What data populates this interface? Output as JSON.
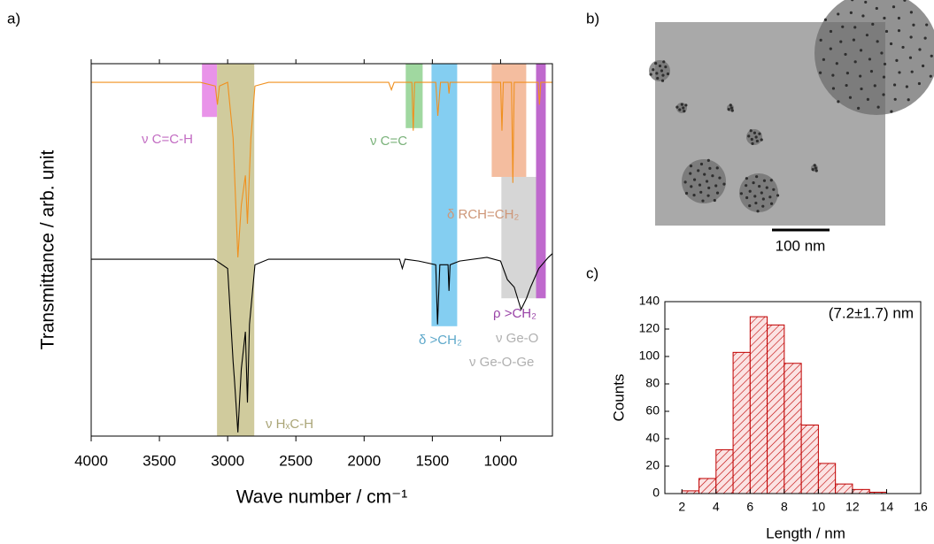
{
  "chart_data": [
    {
      "type": "line",
      "panel": "a)",
      "xlabel": "Wave number / cm⁻¹",
      "ylabel": "Transmittance / arb. unit",
      "xlim": [
        4000,
        620
      ],
      "ylim": [
        0,
        100
      ],
      "xticks": [
        4000,
        3500,
        3000,
        2500,
        2000,
        1500,
        1000
      ],
      "series": [
        {
          "color": "#f0901e",
          "x": [
            4000,
            3200,
            3090,
            3075,
            3060,
            3000,
            2960,
            2925,
            2900,
            2870,
            2855,
            2830,
            2800,
            2700,
            1820,
            1800,
            1780,
            1650,
            1640,
            1630,
            1475,
            1460,
            1440,
            1385,
            1378,
            1370,
            1000,
            990,
            980,
            920,
            910,
            900,
            725,
            715,
            705,
            620
          ],
          "values": [
            95,
            95,
            94,
            89,
            94,
            95,
            80,
            48,
            62,
            70,
            57,
            80,
            94,
            95,
            95,
            93,
            95,
            95,
            82,
            95,
            95,
            86,
            95,
            95,
            92,
            95,
            95,
            82,
            95,
            95,
            68,
            95,
            95,
            89,
            95,
            95
          ]
        },
        {
          "color": "#000000",
          "x": [
            4000,
            3100,
            3000,
            2960,
            2950,
            2925,
            2900,
            2870,
            2855,
            2840,
            2800,
            2700,
            1740,
            1720,
            1700,
            1600,
            1475,
            1462,
            1445,
            1385,
            1378,
            1370,
            1300,
            1100,
            1000,
            950,
            900,
            850,
            810,
            780,
            720,
            650,
            620
          ],
          "values": [
            47.5,
            47.5,
            45,
            20,
            15,
            1,
            18,
            28,
            9,
            30,
            46,
            47.5,
            47.5,
            45,
            47.5,
            47,
            46,
            30,
            46,
            46,
            39,
            46,
            47,
            48,
            47,
            42,
            40,
            34,
            37,
            40,
            45,
            48,
            49
          ]
        }
      ],
      "bands": [
        {
          "color": "#e580e5",
          "x": [
            3188,
            3078
          ],
          "y": [
            100,
            85.7
          ],
          "labels": [
            "ν C=C-H"
          ]
        },
        {
          "color": "#c8c28c",
          "x": [
            3078,
            2805
          ],
          "y": [
            100,
            0
          ],
          "labels": [
            "ν HₓC-H"
          ]
        },
        {
          "color": "#8fd18f",
          "x": [
            1695,
            1571
          ],
          "y": [
            100,
            82.7
          ],
          "labels": [
            "ν C=C"
          ]
        },
        {
          "color": "#6ec6ee",
          "x": [
            1506,
            1318
          ],
          "y": [
            100,
            29.5
          ],
          "labels": [
            "δ >CH₂"
          ]
        },
        {
          "color": "#f2b28e",
          "x": [
            1065,
            812
          ],
          "y": [
            100,
            69.6
          ],
          "labels": [
            "δ RCH=CH₂"
          ]
        },
        {
          "color": "#cfcfcf",
          "x": [
            994,
            740
          ],
          "y": [
            69.6,
            37
          ],
          "labels": [
            "ν Ge-O",
            "ν Ge-O-Ge"
          ]
        },
        {
          "color": "#b44fc4",
          "x": [
            740,
            669
          ],
          "y": [
            100,
            37
          ],
          "labels": [
            "ρ >CH₂"
          ]
        }
      ]
    },
    {
      "type": "image",
      "panel": "b)",
      "scale_bar_label": "100 nm"
    },
    {
      "type": "histogram",
      "panel": "c)",
      "xlabel": "Length / nm",
      "ylabel": "Counts",
      "color": "#c00000",
      "annotation": "(7.2±1.7) nm",
      "bins": [
        2,
        3,
        4,
        5,
        6,
        7,
        8,
        9,
        10,
        11,
        12,
        13,
        14
      ],
      "values": [
        2,
        11,
        32,
        103,
        129,
        123,
        95,
        50,
        22,
        7,
        3,
        1
      ],
      "xlim": [
        1,
        16
      ],
      "ylim": [
        0,
        140
      ],
      "xticks": [
        2,
        4,
        6,
        8,
        10,
        12,
        14,
        16
      ],
      "yticks": [
        0,
        20,
        40,
        60,
        80,
        100,
        120,
        140
      ]
    }
  ]
}
